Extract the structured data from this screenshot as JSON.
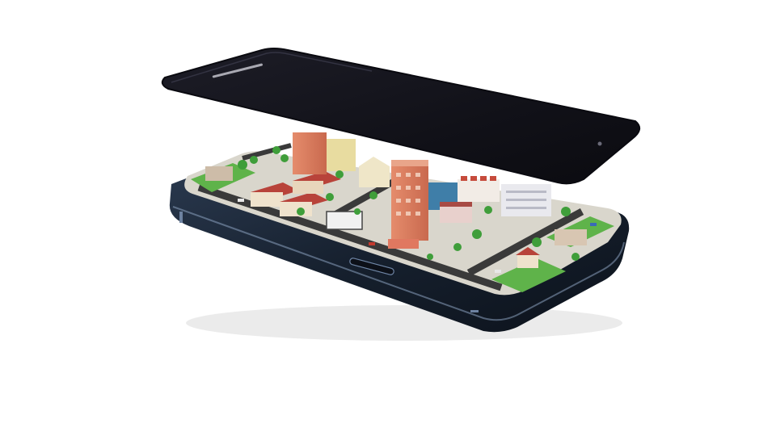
{
  "scene": {
    "subject": "phone-with-miniature-city",
    "colors": {
      "background": "#ffffff",
      "screen_glass": "#14141c",
      "screen_edge": "#0a0a10",
      "frame_metal": "#1d2a3c",
      "frame_highlight": "#7d93b0",
      "city_ground": "#d9d6cc",
      "road": "#3a3a3a",
      "grass": "#5fb34a",
      "tower_brick": "#d9785a",
      "roof_red": "#b8433a",
      "building_white": "#e9e9ee",
      "tree": "#3f9e3a"
    },
    "icons": [
      "home-button-icon",
      "camera-lens-icon"
    ]
  }
}
